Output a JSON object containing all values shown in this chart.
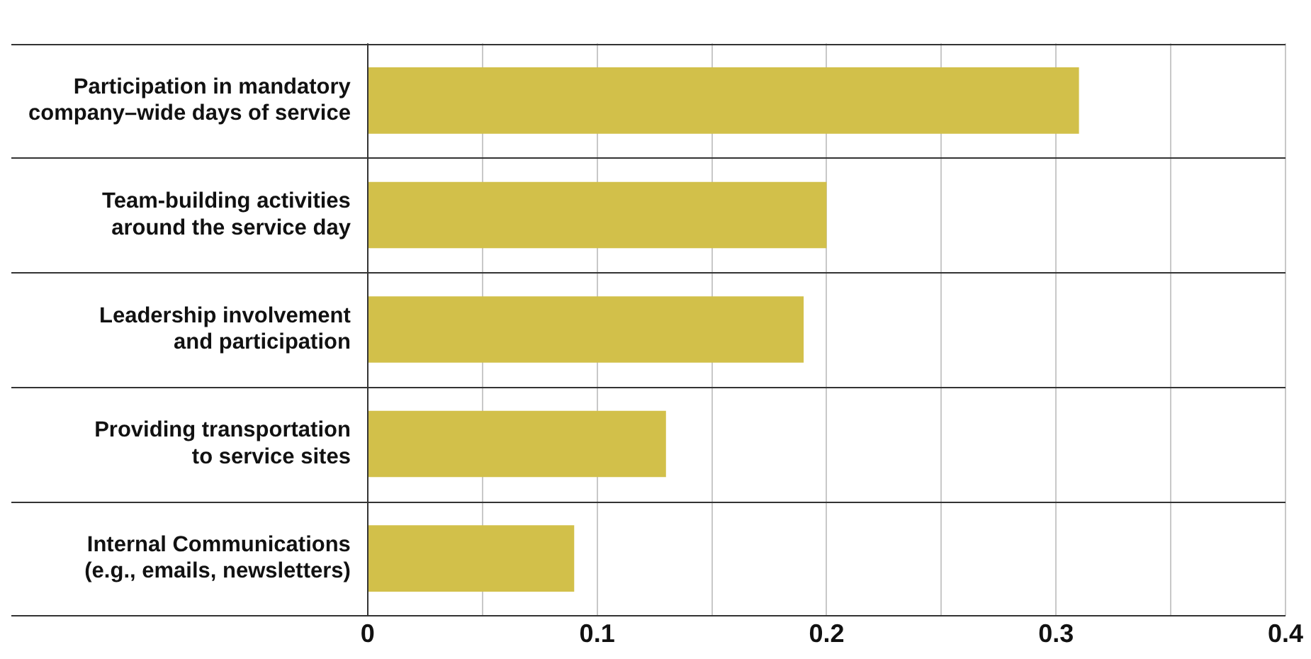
{
  "chart_data": {
    "type": "bar",
    "orientation": "horizontal",
    "categories": [
      "Participation in mandatory company–wide days of service",
      "Team-building activities around the service day",
      "Leadership involvement and participation",
      "Providing transportation to service sites",
      "Internal Communications (e.g., emails, newsletters)"
    ],
    "values": [
      0.31,
      0.2,
      0.19,
      0.13,
      0.09
    ],
    "color": "#d2c04a",
    "xlim": [
      0,
      0.4
    ],
    "xticks": [
      0,
      {
        "value": 0.05,
        "label": null
      },
      0.1,
      {
        "value": 0.15,
        "label": null
      },
      0.2,
      {
        "value": 0.25,
        "label": null
      },
      0.3,
      {
        "value": 0.35,
        "label": null
      },
      0.4
    ],
    "grid": "x",
    "legend": false
  }
}
